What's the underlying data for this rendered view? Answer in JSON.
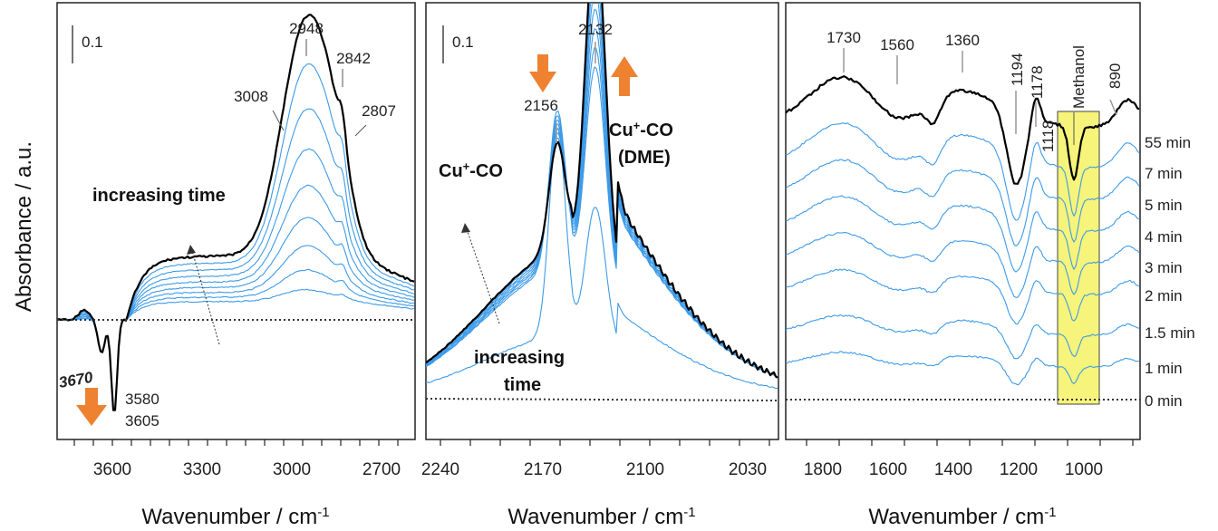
{
  "y_axis_label": "Absorbance / a.u.",
  "colors": {
    "accent_blue": "#3d9be9",
    "final_black": "#000000",
    "arrow_orange": "#ee8230",
    "highlight_yellow": "#f6f47a"
  },
  "chart_data": [
    {
      "type": "line",
      "panel": "left",
      "xlabel": "Wavenumber / cm-1",
      "xlim": [
        3800,
        2600
      ],
      "x_reversed": true,
      "ticks": [
        "3600",
        "3300",
        "3000",
        "2700"
      ],
      "scale_bar": "0.1",
      "annotations": [
        "2948",
        "2842",
        "3008",
        "2807",
        "3580",
        "3605",
        "3670"
      ],
      "text_label": "increasing time",
      "series_note": "blue traces grow with time; final trace black; dotted baseline",
      "peaks": [
        {
          "x": 3670,
          "kind": "negative"
        },
        {
          "x": 3605,
          "kind": "negative"
        },
        {
          "x": 3580,
          "kind": "negative"
        },
        {
          "x": 3008,
          "kind": "shoulder"
        },
        {
          "x": 2948,
          "kind": "positive"
        },
        {
          "x": 2842,
          "kind": "positive"
        },
        {
          "x": 2807,
          "kind": "shoulder"
        }
      ]
    },
    {
      "type": "line",
      "panel": "middle",
      "xlabel": "Wavenumber / cm-1",
      "xlim": [
        2240,
        2000
      ],
      "x_reversed": true,
      "ticks": [
        "2240",
        "2170",
        "2100",
        "2030"
      ],
      "scale_bar": "0.1",
      "annotations": [
        "2132",
        "2156"
      ],
      "labels": [
        "Cu+-CO",
        "Cu+-CO",
        "(DME)"
      ],
      "text_label": [
        "increasing",
        "time"
      ],
      "peaks": [
        {
          "x": 2156,
          "kind": "decreasing"
        },
        {
          "x": 2132,
          "kind": "increasing"
        }
      ]
    },
    {
      "type": "line",
      "panel": "right",
      "xlabel": "Wavenumber / cm-1",
      "xlim": [
        1920,
        850
      ],
      "x_reversed": true,
      "ticks": [
        "1800",
        "1600",
        "1400",
        "1200",
        "1000"
      ],
      "annotations": [
        "1730",
        "1560",
        "1360",
        "1194",
        "1178",
        "1118",
        "890"
      ],
      "highlight_label": "Methanol",
      "series": [
        {
          "name": "55 min"
        },
        {
          "name": "7 min"
        },
        {
          "name": "5 min"
        },
        {
          "name": "4 min"
        },
        {
          "name": "3 min"
        },
        {
          "name": "2 min"
        },
        {
          "name": "1.5 min"
        },
        {
          "name": "1 min"
        },
        {
          "name": "0 min"
        }
      ]
    }
  ]
}
